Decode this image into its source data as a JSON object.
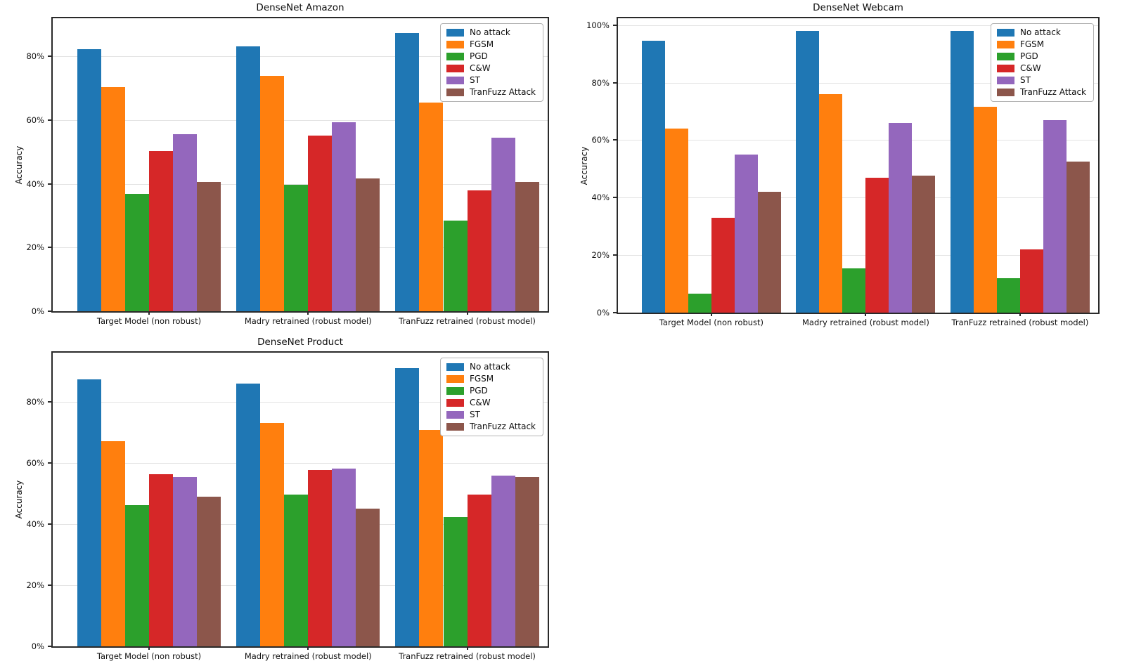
{
  "figure": {
    "background": "#ffffff"
  },
  "chart_data": [
    {
      "type": "bar",
      "title": "DenseNet Amazon",
      "xlabel": "",
      "ylabel": "Accuracy",
      "grid": true,
      "legend_position": "upper right",
      "ylim": [
        0,
        92
      ],
      "yticks": [
        0,
        20,
        40,
        60,
        80
      ],
      "yticklabels": [
        "0%",
        "20%",
        "40%",
        "60%",
        "80%"
      ],
      "categories": [
        "Target Model (non robust)",
        "Madry retrained (robust model)",
        "TranFuzz retrained (robust model)"
      ],
      "series": [
        {
          "name": "No attack",
          "color": "#1f77b4",
          "values": [
            82.4,
            83.2,
            87.3
          ]
        },
        {
          "name": "FGSM",
          "color": "#ff7f0e",
          "values": [
            70.4,
            73.8,
            65.6
          ]
        },
        {
          "name": "PGD",
          "color": "#2ca02c",
          "values": [
            36.8,
            39.7,
            28.4
          ]
        },
        {
          "name": "C&W",
          "color": "#d62728",
          "values": [
            50.3,
            55.1,
            38.0
          ]
        },
        {
          "name": "ST",
          "color": "#9467bd",
          "values": [
            55.7,
            59.4,
            54.4
          ]
        },
        {
          "name": "TranFuzz Attack",
          "color": "#8c564b",
          "values": [
            40.5,
            41.7,
            40.5
          ]
        }
      ]
    },
    {
      "type": "bar",
      "title": "DenseNet Webcam",
      "xlabel": "",
      "ylabel": "Accuracy",
      "grid": true,
      "legend_position": "upper right",
      "ylim": [
        0,
        102.4
      ],
      "yticks": [
        0,
        20,
        40,
        60,
        80,
        100
      ],
      "yticklabels": [
        "0%",
        "20%",
        "40%",
        "60%",
        "80%",
        "100%"
      ],
      "categories": [
        "Target Model (non robust)",
        "Madry retrained (robust model)",
        "TranFuzz retrained (robust model)"
      ],
      "series": [
        {
          "name": "No attack",
          "color": "#1f77b4",
          "values": [
            94.5,
            98.0,
            98.0
          ]
        },
        {
          "name": "FGSM",
          "color": "#ff7f0e",
          "values": [
            64.0,
            76.0,
            71.5
          ]
        },
        {
          "name": "PGD",
          "color": "#2ca02c",
          "values": [
            6.5,
            15.5,
            12.0
          ]
        },
        {
          "name": "C&W",
          "color": "#d62728",
          "values": [
            33.0,
            47.0,
            22.0
          ]
        },
        {
          "name": "ST",
          "color": "#9467bd",
          "values": [
            55.0,
            66.0,
            67.0
          ]
        },
        {
          "name": "TranFuzz Attack",
          "color": "#8c564b",
          "values": [
            42.0,
            47.7,
            52.5
          ]
        }
      ]
    },
    {
      "type": "bar",
      "title": "DenseNet Product",
      "xlabel": "",
      "ylabel": "Accuracy",
      "grid": true,
      "legend_position": "upper right",
      "ylim": [
        0,
        96
      ],
      "yticks": [
        0,
        20,
        40,
        60,
        80
      ],
      "yticklabels": [
        "0%",
        "20%",
        "40%",
        "60%",
        "80%"
      ],
      "categories": [
        "Target Model (non robust)",
        "Madry retrained (robust model)",
        "TranFuzz retrained (robust model)"
      ],
      "series": [
        {
          "name": "No attack",
          "color": "#1f77b4",
          "values": [
            87.3,
            86.0,
            91.0
          ]
        },
        {
          "name": "FGSM",
          "color": "#ff7f0e",
          "values": [
            67.0,
            73.0,
            70.8
          ]
        },
        {
          "name": "PGD",
          "color": "#2ca02c",
          "values": [
            46.2,
            49.7,
            42.3
          ]
        },
        {
          "name": "C&W",
          "color": "#d62728",
          "values": [
            56.3,
            57.7,
            49.5
          ]
        },
        {
          "name": "ST",
          "color": "#9467bd",
          "values": [
            55.4,
            58.0,
            55.8
          ]
        },
        {
          "name": "TranFuzz Attack",
          "color": "#8c564b",
          "values": [
            49.0,
            45.0,
            55.3
          ]
        }
      ]
    }
  ]
}
